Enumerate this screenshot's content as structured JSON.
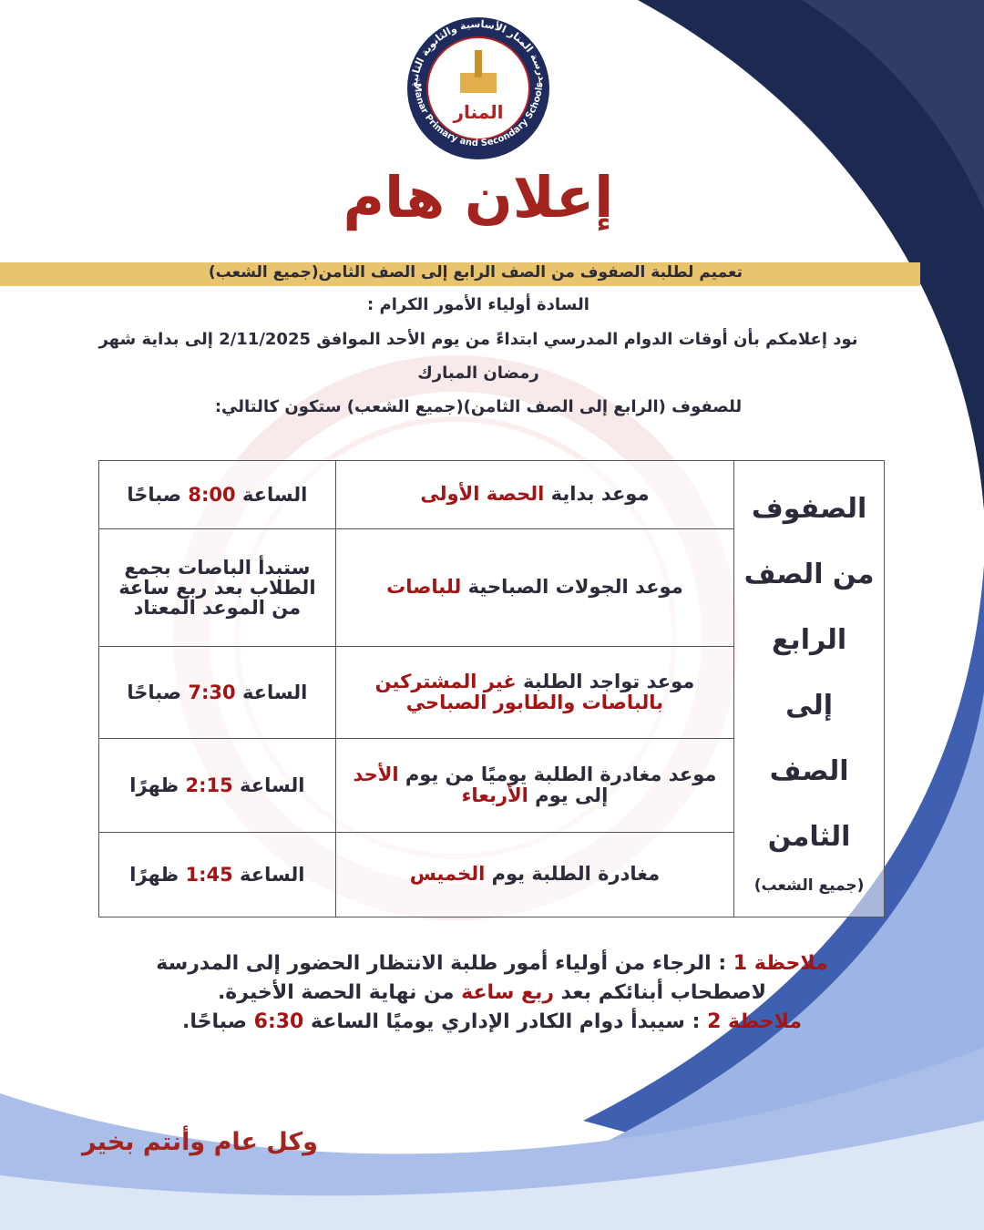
{
  "logo": {
    "ring_top": "مدرسة المنار الأساسية والثانوية الثانية",
    "ring_bottom": "Al-Manar Primary and Secondary Schools /2",
    "name": "المنار"
  },
  "header": {
    "title": "إعلان هام"
  },
  "banner": "تعميم لطلبة الصفوف من الصف الرابع إلى الصف الثامن(جميع الشعب)",
  "greeting": "السادة أولياء الأمور الكرام :",
  "intro": [
    "نود إعلامكم بأن أوقات الدوام المدرسي ابتداءً من يوم الأحد الموافق 2/11/2025 إلى بداية شهر",
    "رمضان المبارك",
    "للصفوف (الرابع إلى الصف الثامن)(جميع الشعب) ستكون كالتالي:"
  ],
  "table": {
    "side": [
      "الصفوف",
      "من الصف",
      "الرابع",
      "إلى الصف",
      "الثامن",
      "(جميع الشعب)"
    ],
    "rows": [
      {
        "item": [
          {
            "text": "موعد بداية "
          },
          {
            "text": "الحصة الأولى",
            "color": "#a31515"
          }
        ],
        "time": [
          {
            "text": "الساعة "
          },
          {
            "text": "8:00",
            "color": "#a31515"
          },
          {
            "text": " صباحًا"
          }
        ]
      },
      {
        "item": [
          {
            "text": "موعد الجولات الصباحية "
          },
          {
            "text": "للباصات",
            "color": "#a31515"
          }
        ],
        "time": [
          {
            "text": "ستبدأ الباصات بجمع الطلاب بعد ربع ساعة من الموعد المعتاد"
          }
        ]
      },
      {
        "item": [
          {
            "text": "موعد تواجد الطلبة "
          },
          {
            "text": "غير المشتركين بالباصات والطابور الصباحي",
            "color": "#a31515"
          }
        ],
        "time": [
          {
            "text": "الساعة "
          },
          {
            "text": "7:30",
            "color": "#a31515"
          },
          {
            "text": " صباحًا"
          }
        ]
      },
      {
        "item": [
          {
            "text": "موعد مغادرة الطلبة يوميًا من يوم "
          },
          {
            "text": "الأحد",
            "color": "#a31515"
          },
          {
            "text": " إلى يوم "
          },
          {
            "text": "الأربعاء",
            "color": "#a31515"
          }
        ],
        "time": [
          {
            "text": "الساعة "
          },
          {
            "text": "2:15",
            "color": "#a31515"
          },
          {
            "text": " ظهرًا"
          }
        ]
      },
      {
        "item": [
          {
            "text": "مغادرة الطلبة يوم "
          },
          {
            "text": "الخميس",
            "color": "#a31515"
          }
        ],
        "time": [
          {
            "text": "الساعة "
          },
          {
            "text": "1:45",
            "color": "#a31515"
          },
          {
            "text": " ظهرًا"
          }
        ]
      }
    ]
  },
  "notes": [
    [
      {
        "text": "ملاحظة 1",
        "color": "#a31515"
      },
      {
        "text": " : الرجاء من أولياء أمور طلبة الانتظار الحضور إلى المدرسة لاصطحاب أبنائكم بعد "
      },
      {
        "text": "ربع ساعة",
        "color": "#a31515"
      },
      {
        "text": " من نهاية الحصة الأخيرة."
      }
    ],
    [
      {
        "text": "ملاحظة 2",
        "color": "#a31515"
      },
      {
        "text": " : سيبدأ دوام الكادر الإداري يوميًا الساعة "
      },
      {
        "text": "6:30",
        "color": "#a31515"
      },
      {
        "text": " صباحًا."
      }
    ]
  ],
  "footer": "وكل عام وأنتم بخير"
}
